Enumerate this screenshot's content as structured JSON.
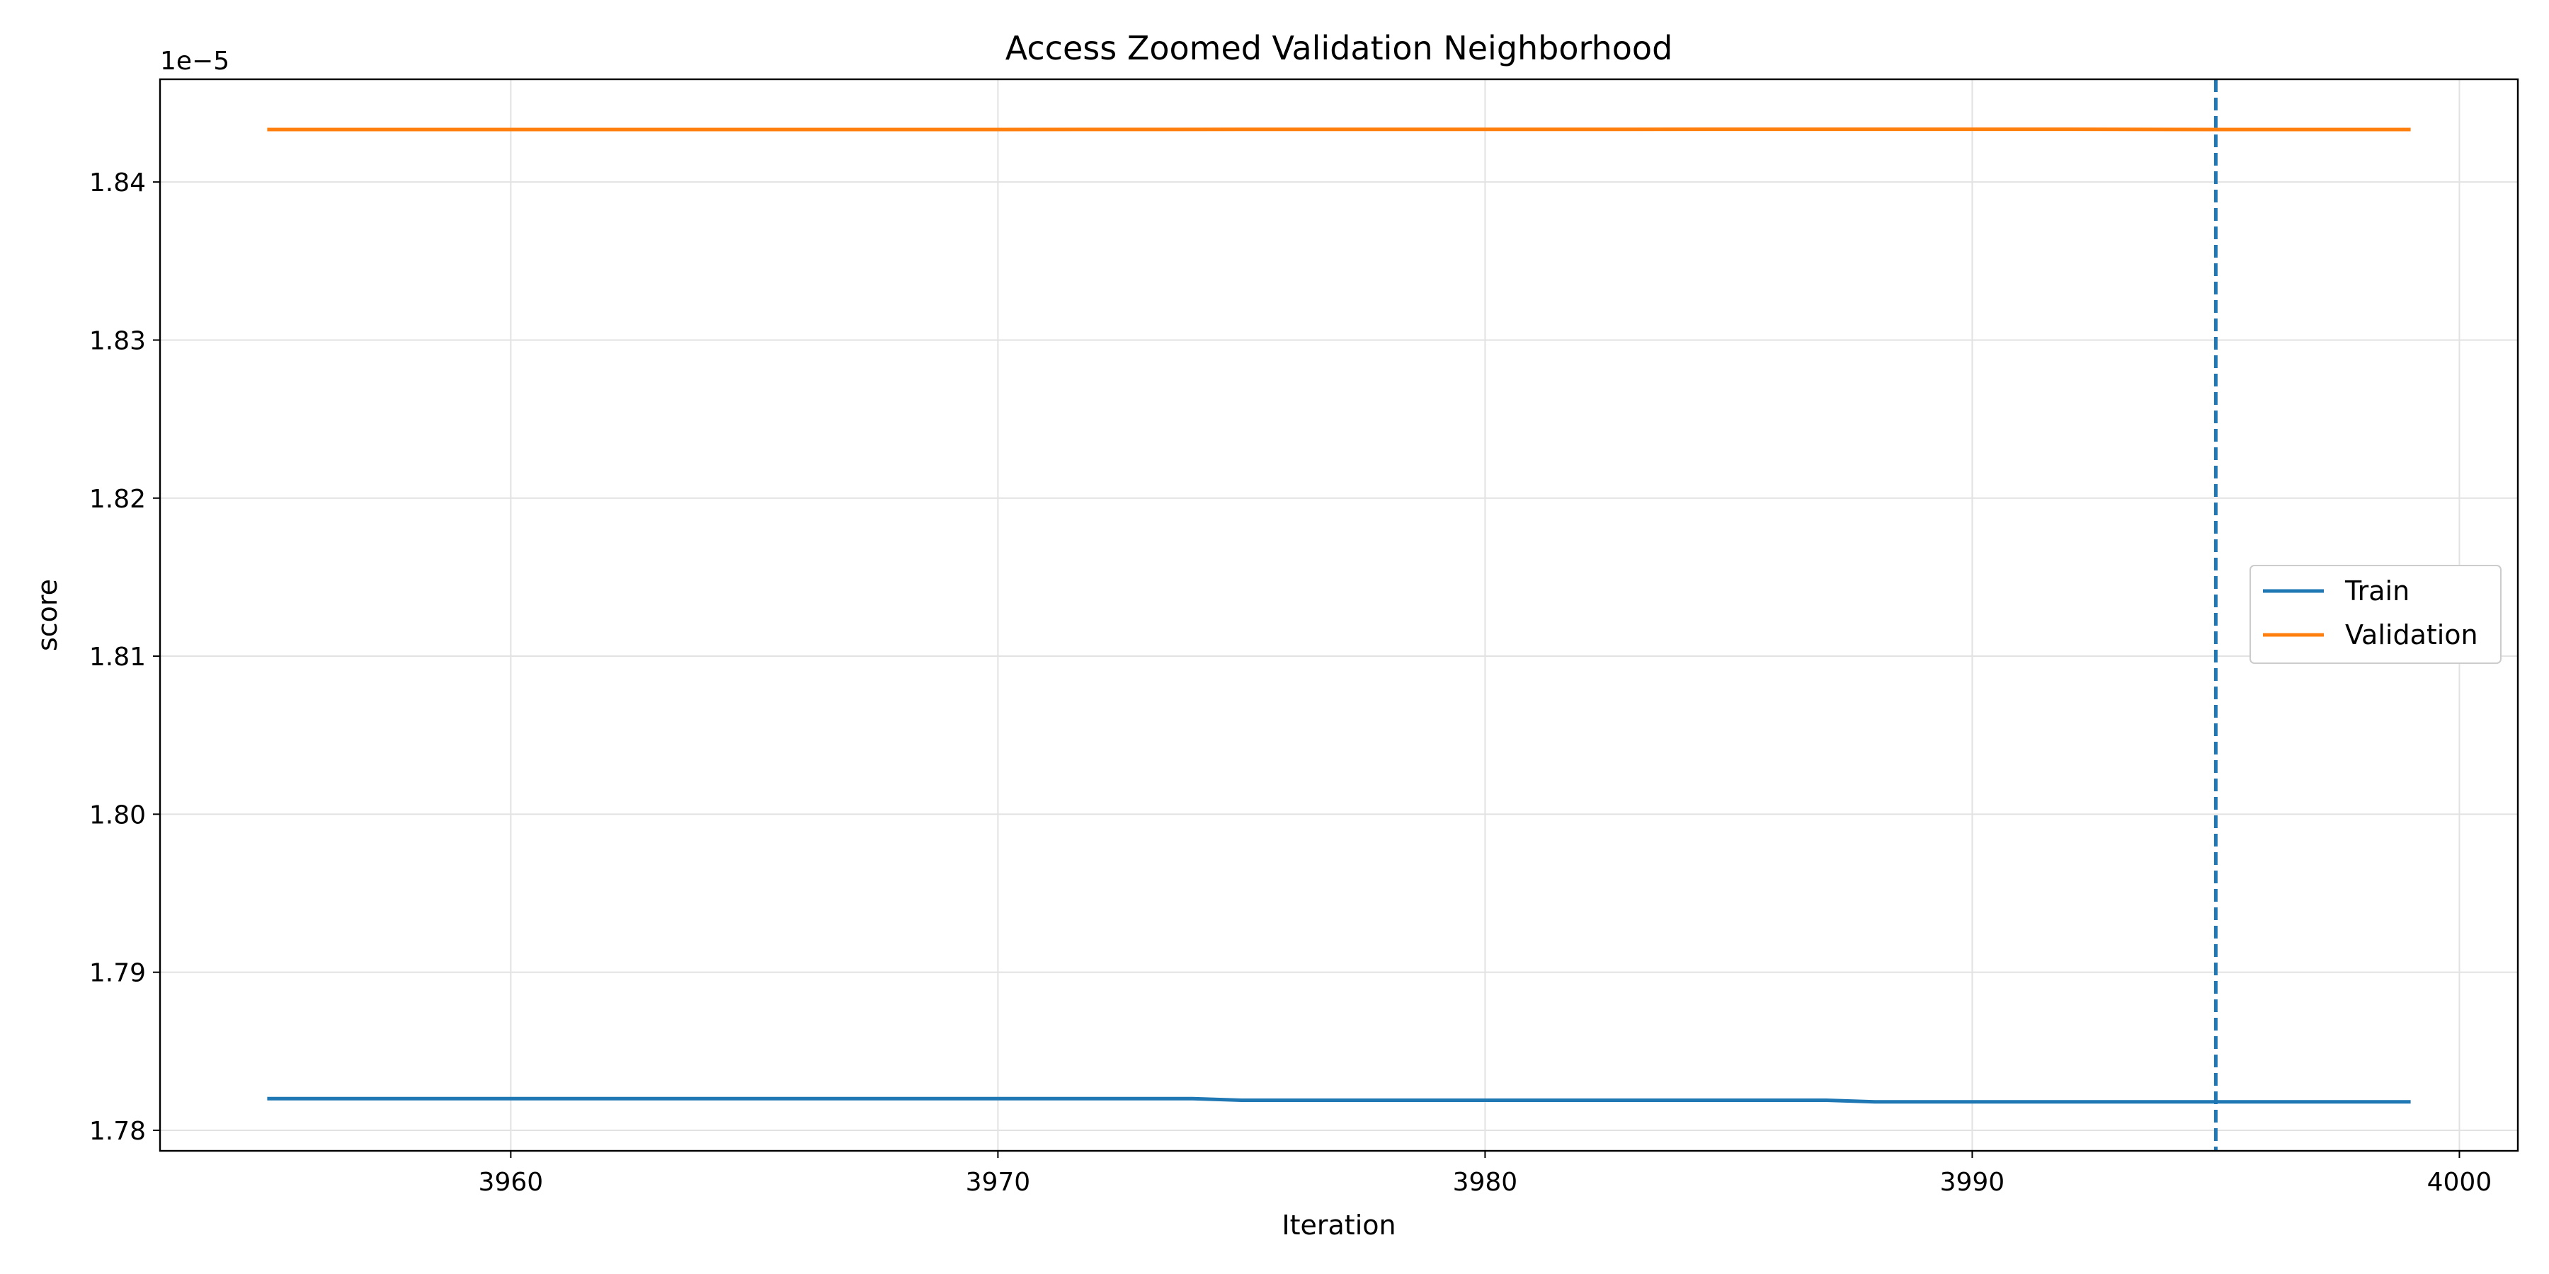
{
  "chart_data": {
    "type": "line",
    "title": "Access Zoomed Validation Neighborhood",
    "xlabel": "Iteration",
    "ylabel": "score",
    "y_offset_label": "1e−5",
    "xlim": [
      3952.8,
      4001.2
    ],
    "ylim": [
      1.7787e-05,
      1.8465e-05
    ],
    "x_ticks": [
      3960,
      3970,
      3980,
      3990,
      4000
    ],
    "x_tick_labels": [
      "3960",
      "3970",
      "3980",
      "3990",
      "4000"
    ],
    "y_ticks": [
      1.78e-05,
      1.79e-05,
      1.8e-05,
      1.81e-05,
      1.82e-05,
      1.83e-05,
      1.84e-05
    ],
    "y_tick_labels": [
      "1.78",
      "1.79",
      "1.80",
      "1.81",
      "1.82",
      "1.83",
      "1.84"
    ],
    "grid": true,
    "legend_position": "center-right",
    "vline": {
      "x": 3995,
      "style": "dashed",
      "color": "#1f77b4"
    },
    "series": [
      {
        "name": "Train",
        "color": "#1f77b4",
        "x": [
          3955,
          3960,
          3965,
          3970,
          3974,
          3975,
          3980,
          3987,
          3988,
          3992,
          3993,
          3995,
          3999
        ],
        "values": [
          1.782e-05,
          1.782e-05,
          1.782e-05,
          1.782e-05,
          1.782e-05,
          1.7819e-05,
          1.7819e-05,
          1.7819e-05,
          1.7818e-05,
          1.7818e-05,
          1.7818e-05,
          1.7818e-05,
          1.7818e-05
        ]
      },
      {
        "name": "Validation",
        "color": "#ff7f0e",
        "x": [
          3955,
          3960,
          3970,
          3975,
          3980,
          3988,
          3990,
          3992,
          3993,
          3995,
          3999
        ],
        "values": [
          1.84332e-05,
          1.84332e-05,
          1.84332e-05,
          1.84333e-05,
          1.84333e-05,
          1.84334e-05,
          1.84334e-05,
          1.84334e-05,
          1.84333e-05,
          1.84332e-05,
          1.84332e-05
        ]
      }
    ]
  }
}
